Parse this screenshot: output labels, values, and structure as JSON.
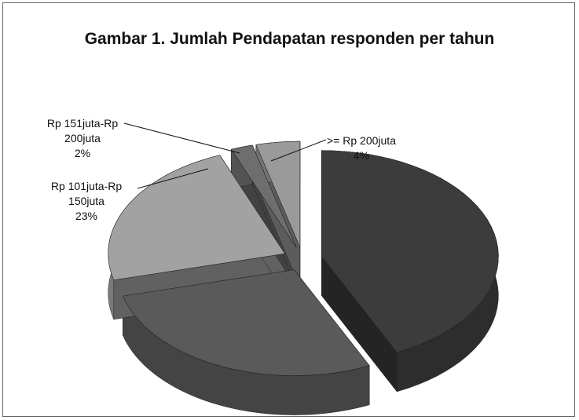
{
  "chart_data": {
    "type": "pie3d",
    "title": "Gambar 1. Jumlah Pendapatan responden per tahun",
    "categories": [
      null,
      null,
      "Rp 101juta-Rp 150juta",
      "Rp 151juta-Rp 200juta",
      ">= Rp 200juta"
    ],
    "values": [
      43,
      28,
      23,
      2,
      4
    ],
    "value_labels": [
      null,
      null,
      "23%",
      "2%",
      "4%"
    ],
    "colors": [
      "#3c3c3c",
      "#5a5a5a",
      "#a2a2a2",
      "#6e6e6e",
      "#9a9a9a"
    ]
  }
}
